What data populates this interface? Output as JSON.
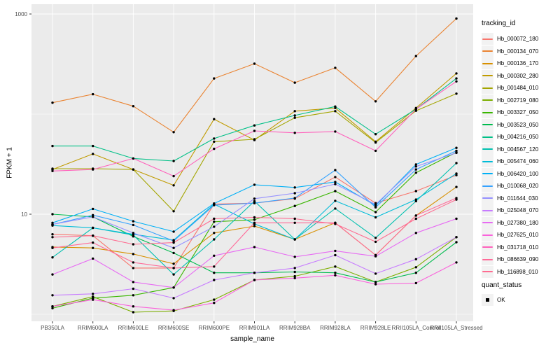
{
  "figure": {
    "panel_bg": "#EBEBEB",
    "grid_color": "#FFFFFF",
    "tick_color": "#333333",
    "tick_label_color": "#4D4D4D",
    "point_color": "#000000"
  },
  "legend": {
    "tracking_title": "tracking_id",
    "quant_title": "quant_status",
    "quant_ok_label": "OK"
  },
  "chart_data": {
    "type": "line",
    "title": "",
    "xlabel": "sample_name",
    "ylabel": "FPKM + 1",
    "y_scale": "log10",
    "ylim": [
      0.85,
      1250
    ],
    "y_major_breaks": [
      10,
      1000
    ],
    "y_tick_labels": [
      "10",
      "1000"
    ],
    "y_minor_breaks": [
      1,
      100
    ],
    "grid": true,
    "legend_position": "right",
    "point_shape": "filled-circle",
    "categories": [
      "PB350LA",
      "RRIM600LA",
      "RRIM600LE",
      "RRIM600SE",
      "RRIM600PE",
      "RRIM901LA",
      "RRIM928BA",
      "RRIM928LA",
      "RRIM928LE",
      "RRII105LA_Control",
      "RRII105LA_Stressed"
    ],
    "series": [
      {
        "name": "Hb_000072_180",
        "color": "#F8766D",
        "values": [
          6.3,
          6.1,
          2.9,
          2.9,
          12.6,
          12.9,
          14.3,
          23.5,
          12.9,
          17.0,
          24.5
        ]
      },
      {
        "name": "Hb_000134_070",
        "color": "#EA8331",
        "values": [
          130,
          158,
          120,
          66,
          227,
          319,
          206,
          290,
          134,
          380,
          900
        ]
      },
      {
        "name": "Hb_000136_170",
        "color": "#D89000",
        "values": [
          4.7,
          4.6,
          4.0,
          3.2,
          6.5,
          7.6,
          5.6,
          8.2,
          3.9,
          9.7,
          18.7
        ]
      },
      {
        "name": "Hb_000302_280",
        "color": "#C09B00",
        "values": [
          28,
          40,
          28,
          19.4,
          89,
          55,
          107,
          115,
          53,
          115,
          255
        ]
      },
      {
        "name": "Hb_001484_010",
        "color": "#A3A500",
        "values": [
          28.5,
          28.5,
          28,
          10.7,
          53,
          56,
          92,
          107,
          52,
          108,
          160
        ]
      },
      {
        "name": "Hb_002719_080",
        "color": "#7CAE00",
        "values": [
          1.2,
          1.5,
          1.05,
          1.08,
          1.4,
          2.2,
          2.4,
          3.0,
          2.1,
          2.95,
          5.9
        ]
      },
      {
        "name": "Hb_003327_050",
        "color": "#39B600",
        "values": [
          1.15,
          1.45,
          1.55,
          1.85,
          8.4,
          8.8,
          12.1,
          17,
          10.5,
          26,
          41.5
        ]
      },
      {
        "name": "Hb_003523_050",
        "color": "#00BB4E",
        "values": [
          10.0,
          9.4,
          6.0,
          4.1,
          2.6,
          2.6,
          2.65,
          2.6,
          2.1,
          2.6,
          5.25
        ]
      },
      {
        "name": "Hb_004216_050",
        "color": "#00C087",
        "values": [
          48,
          48,
          36,
          34,
          57,
          77,
          97,
          119,
          63,
          112,
          227
        ]
      },
      {
        "name": "Hb_004567_120",
        "color": "#00C0AF",
        "values": [
          3.7,
          7.3,
          6.2,
          2.5,
          5.6,
          13.5,
          5.6,
          11.4,
          5.8,
          13.5,
          32.4
        ]
      },
      {
        "name": "Hb_005474_060",
        "color": "#00BCD8",
        "values": [
          7.7,
          7.3,
          6.3,
          5.5,
          12.6,
          8.0,
          5.6,
          13.6,
          9.3,
          14,
          25.5
        ]
      },
      {
        "name": "Hb_006420_100",
        "color": "#00B0F6",
        "values": [
          8.2,
          11.3,
          8.5,
          6.7,
          12.8,
          19.7,
          18.5,
          21,
          12.2,
          31.4,
          46
        ]
      },
      {
        "name": "Hb_010068_020",
        "color": "#35A2FF",
        "values": [
          7.9,
          9.8,
          7.8,
          5.4,
          12.3,
          12.9,
          14.5,
          27.6,
          11.7,
          28,
          43
        ]
      },
      {
        "name": "Hb_011644_030",
        "color": "#9590FF",
        "values": [
          7.9,
          9.4,
          6.5,
          4.6,
          7.5,
          14.3,
          16.2,
          20,
          12.5,
          30,
          41
        ]
      },
      {
        "name": "Hb_025048_070",
        "color": "#C77CFF",
        "values": [
          1.55,
          1.6,
          1.8,
          1.45,
          2.2,
          2.6,
          2.9,
          3.9,
          2.55,
          3.55,
          5.9
        ]
      },
      {
        "name": "Hb_027380_180",
        "color": "#E76BF3",
        "values": [
          2.5,
          3.6,
          2.1,
          1.85,
          3.85,
          4.7,
          3.75,
          4.3,
          3.8,
          6.5,
          9.0
        ]
      },
      {
        "name": "Hb_027625_010",
        "color": "#FA62DB",
        "values": [
          1.2,
          1.4,
          1.2,
          1.1,
          1.3,
          2.2,
          2.3,
          2.45,
          2.0,
          2.05,
          3.3
        ]
      },
      {
        "name": "Hb_031718_010",
        "color": "#FF62BC",
        "values": [
          27,
          28,
          36,
          24,
          45,
          68,
          65,
          67,
          43,
          112,
          212
        ]
      },
      {
        "name": "Hb_086639_090",
        "color": "#FF6A98",
        "values": [
          4.6,
          5.2,
          3.3,
          2.9,
          3.0,
          8.2,
          8.2,
          8.2,
          3.9,
          9.7,
          14.5
        ]
      },
      {
        "name": "Hb_116898_010",
        "color": "#FF6C91",
        "values": [
          5.9,
          6.1,
          5.0,
          5.2,
          9.0,
          9.3,
          9.0,
          8.0,
          5.3,
          9.0,
          14.0
        ]
      }
    ]
  }
}
